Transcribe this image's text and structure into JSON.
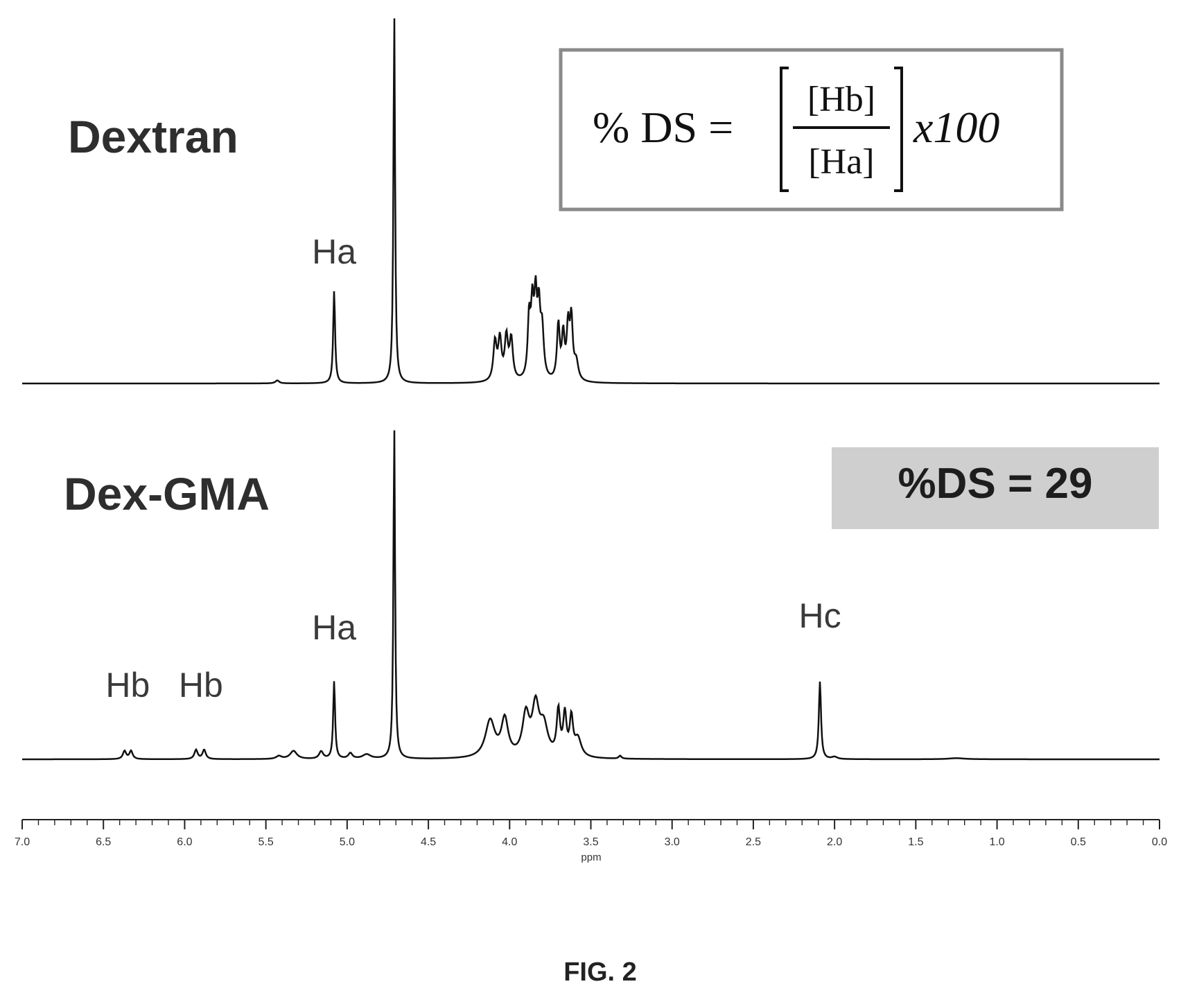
{
  "chart_data": {
    "type": "line",
    "x_unit": "ppm",
    "xlabel": "ppm",
    "x_range": [
      7.0,
      0.0
    ],
    "x_reversed": true,
    "x_ticks": [
      "7.0",
      "6.5",
      "6.0",
      "5.5",
      "5.0",
      "4.5",
      "4.0",
      "3.5",
      "3.0",
      "2.5",
      "2.0",
      "1.5",
      "1.0",
      "0.5",
      "0.0"
    ],
    "series": [
      {
        "name": "Dextran",
        "peaks": [
          {
            "x": 5.43,
            "h": 0.008,
            "w": 0.014
          },
          {
            "x": 5.08,
            "h": 0.25,
            "w": 0.007
          },
          {
            "x": 4.71,
            "h": 1.0,
            "w": 0.006
          },
          {
            "x": 4.09,
            "h": 0.105,
            "w": 0.012
          },
          {
            "x": 4.06,
            "h": 0.11,
            "w": 0.012
          },
          {
            "x": 4.02,
            "h": 0.115,
            "w": 0.012
          },
          {
            "x": 3.99,
            "h": 0.11,
            "w": 0.012
          },
          {
            "x": 3.88,
            "h": 0.16,
            "w": 0.01
          },
          {
            "x": 3.86,
            "h": 0.18,
            "w": 0.01
          },
          {
            "x": 3.84,
            "h": 0.2,
            "w": 0.01
          },
          {
            "x": 3.82,
            "h": 0.17,
            "w": 0.01
          },
          {
            "x": 3.8,
            "h": 0.13,
            "w": 0.012
          },
          {
            "x": 3.7,
            "h": 0.15,
            "w": 0.01
          },
          {
            "x": 3.67,
            "h": 0.12,
            "w": 0.01
          },
          {
            "x": 3.64,
            "h": 0.14,
            "w": 0.01
          },
          {
            "x": 3.62,
            "h": 0.16,
            "w": 0.01
          },
          {
            "x": 3.59,
            "h": 0.05,
            "w": 0.015
          }
        ],
        "labels": [
          {
            "text": "Ha",
            "x": 5.08
          }
        ]
      },
      {
        "name": "Dex-GMA",
        "peaks": [
          {
            "x": 6.37,
            "h": 0.022,
            "w": 0.012
          },
          {
            "x": 6.33,
            "h": 0.022,
            "w": 0.012
          },
          {
            "x": 5.93,
            "h": 0.025,
            "w": 0.012
          },
          {
            "x": 5.88,
            "h": 0.025,
            "w": 0.012
          },
          {
            "x": 5.42,
            "h": 0.008,
            "w": 0.02
          },
          {
            "x": 5.33,
            "h": 0.022,
            "w": 0.025
          },
          {
            "x": 5.16,
            "h": 0.02,
            "w": 0.015
          },
          {
            "x": 5.08,
            "h": 0.21,
            "w": 0.007
          },
          {
            "x": 4.98,
            "h": 0.015,
            "w": 0.015
          },
          {
            "x": 4.88,
            "h": 0.012,
            "w": 0.03
          },
          {
            "x": 4.71,
            "h": 0.9,
            "w": 0.006
          },
          {
            "x": 4.12,
            "h": 0.1,
            "w": 0.035
          },
          {
            "x": 4.03,
            "h": 0.1,
            "w": 0.025
          },
          {
            "x": 3.9,
            "h": 0.11,
            "w": 0.025
          },
          {
            "x": 3.84,
            "h": 0.13,
            "w": 0.025
          },
          {
            "x": 3.79,
            "h": 0.08,
            "w": 0.03
          },
          {
            "x": 3.7,
            "h": 0.12,
            "w": 0.012
          },
          {
            "x": 3.66,
            "h": 0.11,
            "w": 0.012
          },
          {
            "x": 3.62,
            "h": 0.1,
            "w": 0.012
          },
          {
            "x": 3.58,
            "h": 0.05,
            "w": 0.025
          },
          {
            "x": 3.32,
            "h": 0.008,
            "w": 0.01
          },
          {
            "x": 2.09,
            "h": 0.21,
            "w": 0.008
          },
          {
            "x": 2.0,
            "h": 0.006,
            "w": 0.02
          },
          {
            "x": 1.25,
            "h": 0.003,
            "w": 0.06
          }
        ],
        "labels": [
          {
            "text": "Hb",
            "x": 6.35
          },
          {
            "text": "Hb",
            "x": 5.9
          },
          {
            "text": "Ha",
            "x": 5.08
          },
          {
            "text": "Hc",
            "x": 2.09
          }
        ]
      }
    ],
    "annotations": {
      "formula": {
        "lhs": "% DS =",
        "numerator": "[Hb]",
        "denominator": "[Ha]",
        "multiplier": "x100"
      },
      "result": "%DS = 29"
    }
  },
  "caption": "FIG. 2"
}
